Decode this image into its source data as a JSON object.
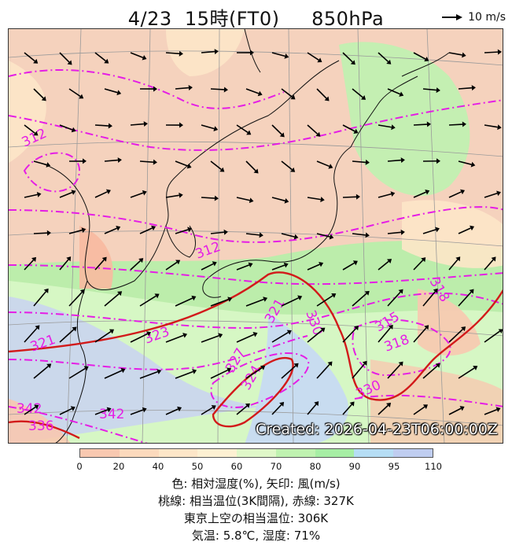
{
  "header": {
    "title": "4/23  15時(FT0)     850hPa",
    "wind_reference_label": "10 m/s"
  },
  "map": {
    "created_label": "Created: 2026-04-23T06:00:00Z",
    "contour_labels": [
      "312",
      "312",
      "318",
      "315",
      "318",
      "321",
      "323",
      "327",
      "324",
      "321",
      "330",
      "330",
      "342",
      "342",
      "336"
    ],
    "colors": {
      "contour_theta_e": "#e51ee5",
      "contour_327K": "#d21a1a",
      "coast": "#111111",
      "grid": "#9a9a9a",
      "wind_arrow": "#000000"
    }
  },
  "colorbar": {
    "ticks": [
      "0",
      "20",
      "40",
      "50",
      "60",
      "70",
      "80",
      "90",
      "95",
      "110"
    ],
    "colors": [
      "#f8c8b0",
      "#fbd9bc",
      "#fde6c8",
      "#fdf0d2",
      "#dff7c8",
      "#bff2b0",
      "#a6eea4",
      "#b5ddf4",
      "#bfcdf0"
    ]
  },
  "captions": {
    "line1": "色: 相対湿度(%), 矢印: 風(m/s)",
    "line2": "桃線: 相当温位(3K間隔), 赤線: 327K",
    "line3": "東京上空の相当温位: 306K",
    "line4": "気温: 5.8℃, 湿度: 71%"
  }
}
